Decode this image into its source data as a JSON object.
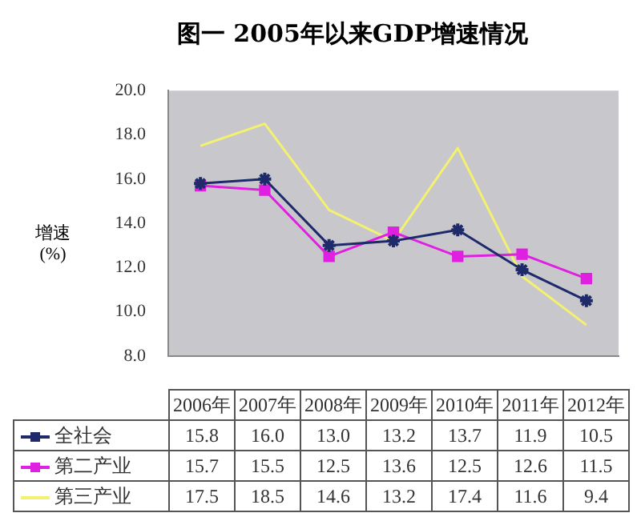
{
  "chart_data": {
    "type": "line",
    "title": "图一 2005年以来GDP增速情况",
    "ylabel": "增速\n(%)",
    "categories": [
      "2006年",
      "2007年",
      "2008年",
      "2009年",
      "2010年",
      "2011年",
      "2012年"
    ],
    "series": [
      {
        "name": "全社会",
        "color": "#1f2a6b",
        "marker": "cross",
        "values": [
          15.8,
          16.0,
          13.0,
          13.2,
          13.7,
          11.9,
          10.5
        ],
        "value_labels": [
          "15.8",
          "16.0",
          "13.0",
          "13.2",
          "13.7",
          "11.9",
          "10.5"
        ]
      },
      {
        "name": "第二产业",
        "color": "#e020e0",
        "marker": "square",
        "values": [
          15.7,
          15.5,
          12.5,
          13.6,
          12.5,
          12.6,
          11.5
        ],
        "value_labels": [
          "15.7",
          "15.5",
          "12.5",
          "13.6",
          "12.5",
          "12.6",
          "11.5"
        ]
      },
      {
        "name": "第三产业",
        "color": "#f4f070",
        "marker": "none",
        "values": [
          17.5,
          18.5,
          14.6,
          13.2,
          17.4,
          11.6,
          9.4
        ],
        "value_labels": [
          "17.5",
          "18.5",
          "14.6",
          "13.2",
          "17.4",
          "11.6",
          "9.4"
        ]
      }
    ],
    "ylim": [
      8,
      20
    ],
    "yticks": [
      {
        "value": 8,
        "label": "8.0"
      },
      {
        "value": 10,
        "label": "10.0"
      },
      {
        "value": 12,
        "label": "12.0"
      },
      {
        "value": 14,
        "label": "14.0"
      },
      {
        "value": 16,
        "label": "16.0"
      },
      {
        "value": 18,
        "label": "18.0"
      },
      {
        "value": 20,
        "label": "20.0"
      }
    ],
    "grid": false,
    "legend": "bottom"
  }
}
